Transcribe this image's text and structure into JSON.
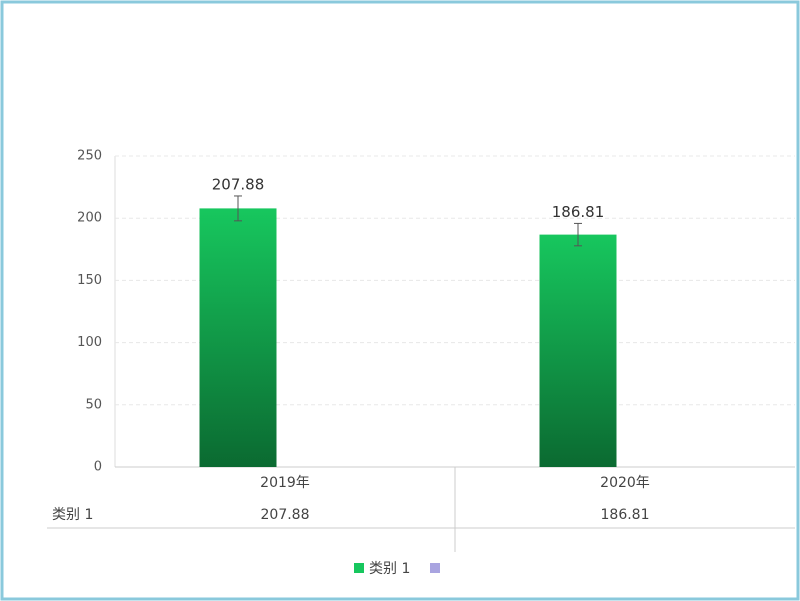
{
  "chart_data": {
    "type": "bar",
    "categories": [
      "2019年",
      "2020年"
    ],
    "series": [
      {
        "name": "类别 1",
        "color": "#17c75e",
        "values": [
          207.88,
          186.81
        ],
        "errors": [
          10,
          9
        ]
      }
    ],
    "ylim": [
      0,
      250
    ],
    "yticks": [
      0,
      50,
      100,
      150,
      200,
      250
    ],
    "grid": true,
    "legend": "bottom",
    "data_table": true
  }
}
